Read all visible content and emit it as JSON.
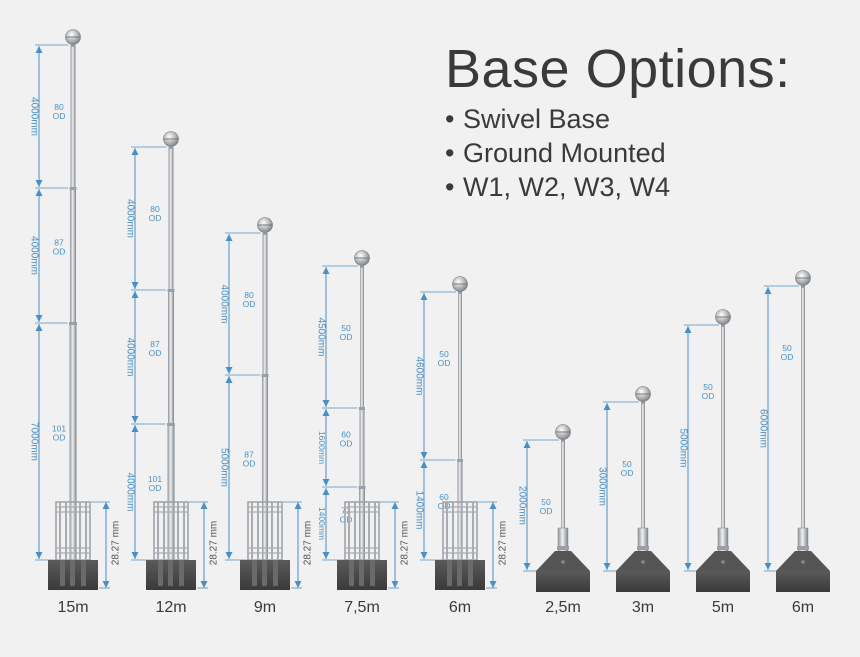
{
  "heading": {
    "title": "Base Options:",
    "options": [
      "Swivel Base",
      "Ground Mounted",
      "W1, W2, W3, W4"
    ]
  },
  "colors": {
    "background": "#f1f1f1",
    "dimension": "#4a90c8",
    "pole": "#c9cdd1",
    "base": "#4a4a4a",
    "text": "#3a3a3a"
  },
  "poles": [
    {
      "label": "15m",
      "type": "ground",
      "segments": [
        {
          "length": "4000mm",
          "od": [
            "80",
            "OD"
          ]
        },
        {
          "length": "4000mm",
          "od": [
            "87",
            "OD"
          ]
        },
        {
          "length": "7000mm",
          "od": [
            "101",
            "OD"
          ]
        }
      ],
      "base_dim": "28.27 mm"
    },
    {
      "label": "12m",
      "type": "ground",
      "segments": [
        {
          "length": "4000mm",
          "od": [
            "80",
            "OD"
          ]
        },
        {
          "length": "4000mm",
          "od": [
            "87",
            "OD"
          ]
        },
        {
          "length": "4000mm",
          "od": [
            "101",
            "OD"
          ]
        }
      ],
      "base_dim": "28.27 mm"
    },
    {
      "label": "9m",
      "type": "ground",
      "segments": [
        {
          "length": "4000mm",
          "od": [
            "80",
            "OD"
          ]
        },
        {
          "length": "5000mm",
          "od": [
            "87",
            "OD"
          ]
        }
      ],
      "base_dim": "28.27 mm"
    },
    {
      "label": "7,5m",
      "type": "ground",
      "segments": [
        {
          "length": "4500mm",
          "od": [
            "50",
            "OD"
          ]
        },
        {
          "length": "1600mm",
          "od": [
            "60",
            "OD"
          ]
        },
        {
          "length": "1400mm",
          "od": [
            "71",
            "OD"
          ]
        }
      ],
      "base_dim": "28.27 mm"
    },
    {
      "label": "6m",
      "type": "ground",
      "segments": [
        {
          "length": "4600mm",
          "od": [
            "50",
            "OD"
          ]
        },
        {
          "length": "1400mm",
          "od": [
            "60",
            "OD"
          ]
        }
      ],
      "base_dim": "28.27 mm"
    },
    {
      "label": "2,5m",
      "type": "swivel",
      "segments": [
        {
          "length": "2000mm",
          "od": [
            "50",
            "OD"
          ]
        }
      ]
    },
    {
      "label": "3m",
      "type": "swivel",
      "segments": [
        {
          "length": "3000mm",
          "od": [
            "50",
            "OD"
          ]
        }
      ]
    },
    {
      "label": "5m",
      "type": "swivel",
      "segments": [
        {
          "length": "5000mm",
          "od": [
            "50",
            "OD"
          ]
        }
      ]
    },
    {
      "label": "6m",
      "type": "swivel",
      "segments": [
        {
          "length": "6000mm",
          "od": [
            "50",
            "OD"
          ]
        }
      ]
    }
  ]
}
